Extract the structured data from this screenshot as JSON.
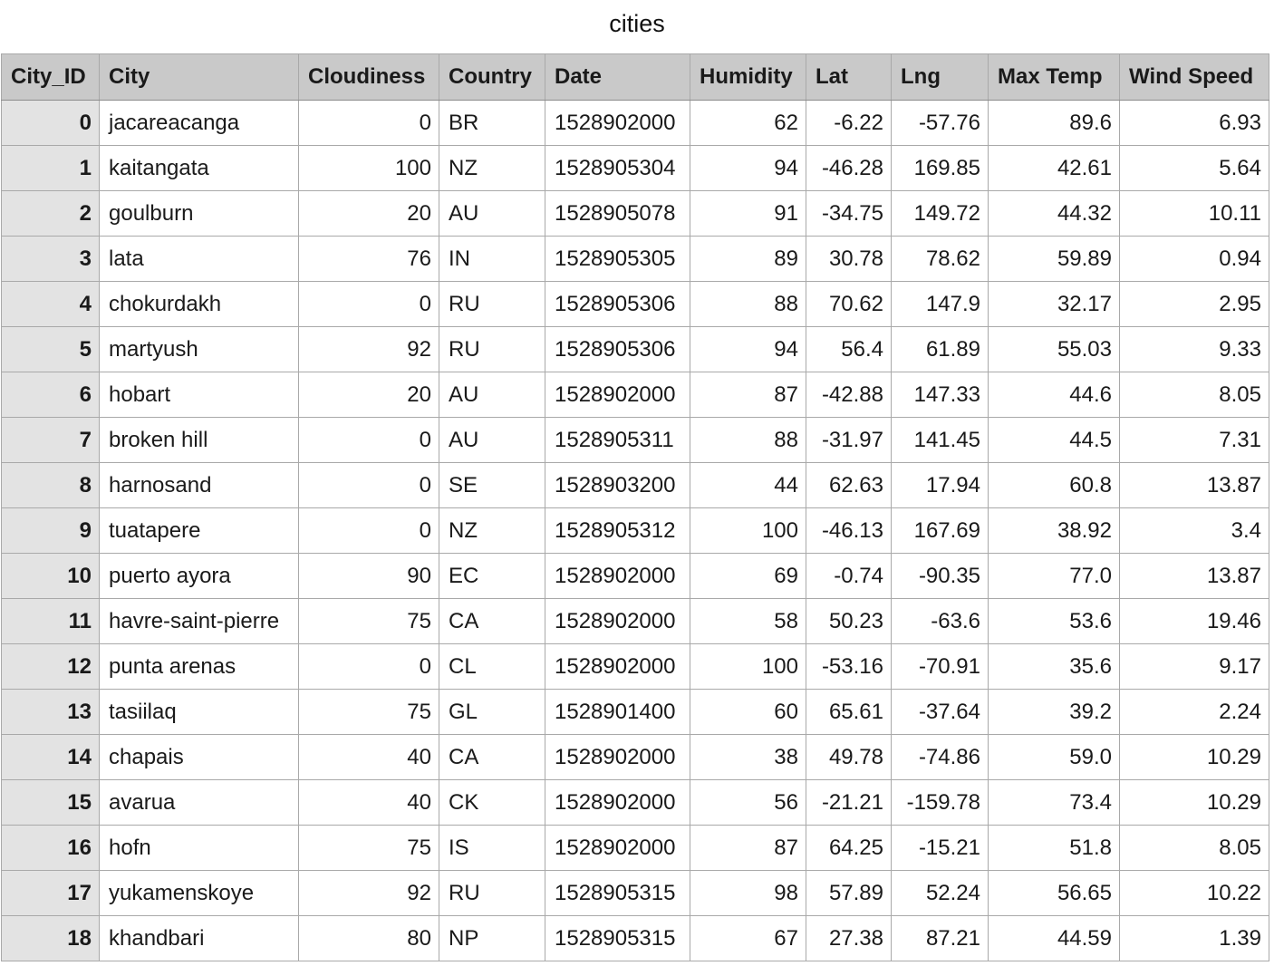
{
  "sheet": {
    "title": "cities"
  },
  "table": {
    "columns": [
      "City_ID",
      "City",
      "Cloudiness",
      "Country",
      "Date",
      "Humidity",
      "Lat",
      "Lng",
      "Max Temp",
      "Wind Speed"
    ],
    "rows": [
      [
        "0",
        "jacareacanga",
        "0",
        "BR",
        "1528902000",
        "62",
        "-6.22",
        "-57.76",
        "89.6",
        "6.93"
      ],
      [
        "1",
        "kaitangata",
        "100",
        "NZ",
        "1528905304",
        "94",
        "-46.28",
        "169.85",
        "42.61",
        "5.64"
      ],
      [
        "2",
        "goulburn",
        "20",
        "AU",
        "1528905078",
        "91",
        "-34.75",
        "149.72",
        "44.32",
        "10.11"
      ],
      [
        "3",
        "lata",
        "76",
        "IN",
        "1528905305",
        "89",
        "30.78",
        "78.62",
        "59.89",
        "0.94"
      ],
      [
        "4",
        "chokurdakh",
        "0",
        "RU",
        "1528905306",
        "88",
        "70.62",
        "147.9",
        "32.17",
        "2.95"
      ],
      [
        "5",
        "martyush",
        "92",
        "RU",
        "1528905306",
        "94",
        "56.4",
        "61.89",
        "55.03",
        "9.33"
      ],
      [
        "6",
        "hobart",
        "20",
        "AU",
        "1528902000",
        "87",
        "-42.88",
        "147.33",
        "44.6",
        "8.05"
      ],
      [
        "7",
        "broken hill",
        "0",
        "AU",
        "1528905311",
        "88",
        "-31.97",
        "141.45",
        "44.5",
        "7.31"
      ],
      [
        "8",
        "harnosand",
        "0",
        "SE",
        "1528903200",
        "44",
        "62.63",
        "17.94",
        "60.8",
        "13.87"
      ],
      [
        "9",
        "tuatapere",
        "0",
        "NZ",
        "1528905312",
        "100",
        "-46.13",
        "167.69",
        "38.92",
        "3.4"
      ],
      [
        "10",
        "puerto ayora",
        "90",
        "EC",
        "1528902000",
        "69",
        "-0.74",
        "-90.35",
        "77.0",
        "13.87"
      ],
      [
        "11",
        "havre-saint-pierre",
        "75",
        "CA",
        "1528902000",
        "58",
        "50.23",
        "-63.6",
        "53.6",
        "19.46"
      ],
      [
        "12",
        "punta arenas",
        "0",
        "CL",
        "1528902000",
        "100",
        "-53.16",
        "-70.91",
        "35.6",
        "9.17"
      ],
      [
        "13",
        "tasiilaq",
        "75",
        "GL",
        "1528901400",
        "60",
        "65.61",
        "-37.64",
        "39.2",
        "2.24"
      ],
      [
        "14",
        "chapais",
        "40",
        "CA",
        "1528902000",
        "38",
        "49.78",
        "-74.86",
        "59.0",
        "10.29"
      ],
      [
        "15",
        "avarua",
        "40",
        "CK",
        "1528902000",
        "56",
        "-21.21",
        "-159.78",
        "73.4",
        "10.29"
      ],
      [
        "16",
        "hofn",
        "75",
        "IS",
        "1528902000",
        "87",
        "64.25",
        "-15.21",
        "51.8",
        "8.05"
      ],
      [
        "17",
        "yukamenskoye",
        "92",
        "RU",
        "1528905315",
        "98",
        "57.89",
        "52.24",
        "56.65",
        "10.22"
      ],
      [
        "18",
        "khandbari",
        "80",
        "NP",
        "1528905315",
        "67",
        "27.38",
        "87.21",
        "44.59",
        "1.39"
      ]
    ]
  }
}
